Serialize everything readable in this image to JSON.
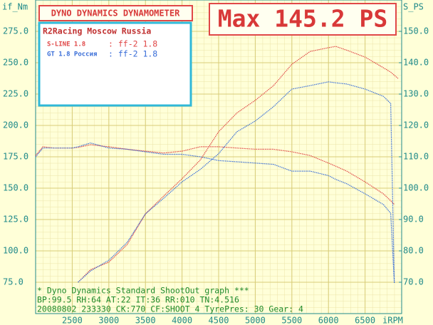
{
  "chart_data": {
    "type": "line",
    "title": "DYNO DYNAMICS DYNAMOMETER",
    "headline": "Max 145.2 PS",
    "y_label": "if_Nm",
    "y2_label": "S_PS",
    "x_label": "iRPM",
    "legend_title": "R2Racing Moscow Russia",
    "legend": [
      {
        "label": "S-LINE 1.8",
        "note": ": ff-2 1.8",
        "color": "#e04848"
      },
      {
        "label": "GT 1.8 Россия",
        "note": ": ff-2 1.8",
        "color": "#3a6ed8"
      }
    ],
    "footer": [
      "* Dyno Dynamics Standard ShootOut graph ***",
      "BP:99.5  RH:64 AT:22 IT:36  RR:010 TN:4.516",
      "20080802 233330 CK:770 CF:SHOOT_4  TyrePres: 30      Gear: 4"
    ],
    "x": [
      2000,
      2100,
      2250,
      2500,
      2580,
      2750,
      3000,
      3250,
      3500,
      3750,
      4000,
      4250,
      4500,
      4750,
      5000,
      5250,
      5500,
      5750,
      6000,
      6100,
      6250,
      6500,
      6750,
      6850,
      6900,
      6950
    ],
    "series": [
      {
        "color": "#e04848",
        "axis": "y",
        "values": [
          176,
          183,
          182,
          182,
          182.5,
          184.6,
          183,
          181,
          179.5,
          178,
          179.5,
          183,
          183,
          182,
          181,
          181,
          179,
          176,
          170,
          167.5,
          163.6,
          155,
          145.5,
          140,
          137,
          null
        ]
      },
      {
        "color": "#3a6ed8",
        "axis": "y",
        "values": [
          175,
          182,
          182,
          182,
          183,
          186,
          182,
          181,
          179,
          177,
          177,
          175,
          172,
          171,
          170,
          169,
          163.6,
          163.6,
          160,
          157,
          153.5,
          145.5,
          137,
          130,
          74,
          null
        ]
      },
      {
        "color": "#e04848",
        "axis": "y2",
        "values": [
          null,
          null,
          null,
          null,
          70,
          74,
          76.4,
          82,
          91.8,
          97.5,
          103,
          109,
          118,
          124,
          128,
          132.7,
          139.5,
          143.6,
          144.8,
          145.2,
          144,
          141.8,
          138.4,
          137,
          136,
          135
        ]
      },
      {
        "color": "#3a6ed8",
        "axis": "y2",
        "values": [
          null,
          null,
          null,
          null,
          70,
          73.6,
          77,
          82.7,
          91.8,
          96.8,
          102,
          106,
          111,
          118,
          121.4,
          126,
          131.6,
          132.7,
          133.9,
          133.6,
          133.2,
          131.6,
          129.3,
          127,
          70,
          null
        ]
      }
    ],
    "xlim": [
      2000,
      7000
    ],
    "xticks": [
      2500,
      3000,
      3500,
      4000,
      4500,
      5000,
      5500,
      6000,
      6500
    ],
    "ylim": [
      50,
      300
    ],
    "yticks": [
      {
        "value": 75,
        "label": "75.0"
      },
      {
        "value": 100,
        "label": "100.0"
      },
      {
        "value": 125,
        "label": "125.0"
      },
      {
        "value": 150,
        "label": "150.0"
      },
      {
        "value": 175,
        "label": "175.0"
      },
      {
        "value": 200,
        "label": "200.0"
      },
      {
        "value": 225,
        "label": "225.0"
      },
      {
        "value": 250,
        "label": "250.0"
      },
      {
        "value": 275,
        "label": "275.0"
      }
    ],
    "y2lim": [
      60,
      160
    ],
    "y2ticks": [
      {
        "value": 70,
        "label": "70.0"
      },
      {
        "value": 80,
        "label": "80.0"
      },
      {
        "value": 90,
        "label": "90.0"
      },
      {
        "value": 100,
        "label": "100.0"
      },
      {
        "value": 110,
        "label": "110.0"
      },
      {
        "value": 120,
        "label": "120.0"
      },
      {
        "value": 130,
        "label": "130.0"
      },
      {
        "value": 140,
        "label": "140.0"
      },
      {
        "value": 150,
        "label": "150.0"
      }
    ],
    "grid": true
  }
}
